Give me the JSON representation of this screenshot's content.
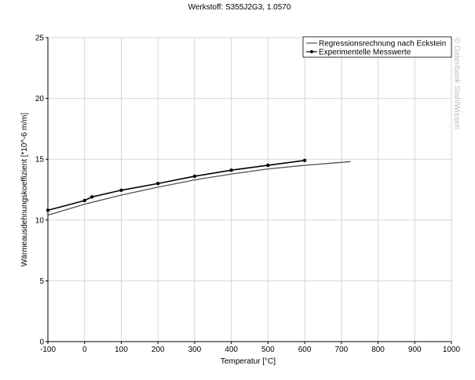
{
  "chart_data": {
    "type": "line",
    "title": "Werkstoff: S355J2G3, 1.0570",
    "xlabel": "Temperatur [°C]",
    "ylabel": "Wärmeausdehnungskoeffizient [*10^-6 m/m]",
    "xlim": [
      -100,
      1000
    ],
    "ylim": [
      0,
      25
    ],
    "xticks": [
      -100,
      0,
      100,
      200,
      300,
      400,
      500,
      600,
      700,
      800,
      900,
      1000
    ],
    "yticks": [
      0,
      5,
      10,
      15,
      20,
      25
    ],
    "grid": true,
    "legend_position": "top-right",
    "watermark": "© Datenbank StahlWissen",
    "series": [
      {
        "name": "Regressionsrechnung nach Eckstein",
        "markers": false,
        "color": "#505050",
        "x": [
          -100,
          0,
          100,
          200,
          300,
          400,
          500,
          600,
          725
        ],
        "y": [
          10.4,
          11.3,
          12.05,
          12.7,
          13.3,
          13.78,
          14.2,
          14.5,
          14.8
        ]
      },
      {
        "name": "Experimentelle Messwerte",
        "markers": true,
        "color": "#000000",
        "x": [
          -100,
          0,
          20,
          100,
          200,
          300,
          400,
          500,
          600
        ],
        "y": [
          10.8,
          11.6,
          11.9,
          12.45,
          13.0,
          13.6,
          14.1,
          14.5,
          14.9
        ]
      }
    ]
  }
}
